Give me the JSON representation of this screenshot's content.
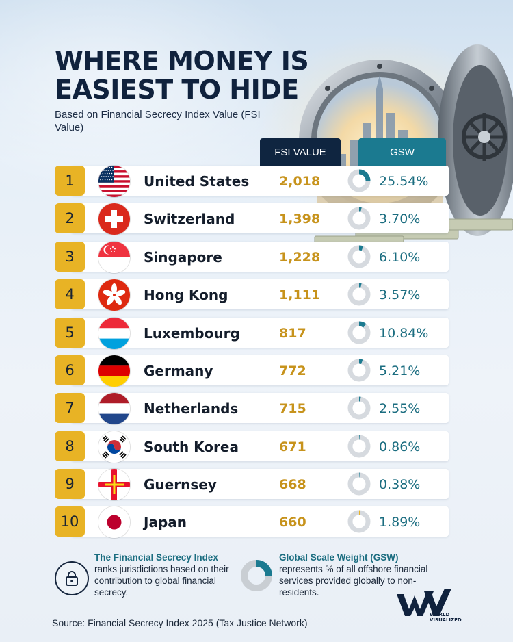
{
  "title_line1": "WHERE MONEY IS",
  "title_line2": "EASIEST TO HIDE",
  "subtitle": "Based on Financial Secrecy Index Value (FSI Value)",
  "colors": {
    "navy": "#0f2540",
    "teal": "#1b7a90",
    "gold": "#e8b325",
    "fsi_text": "#c7931c"
  },
  "chart_data": {
    "type": "table",
    "columns": [
      "FSI VALUE",
      "GSW"
    ],
    "rows": [
      {
        "rank": "1",
        "country": "United States",
        "fsi": "2,018",
        "gsw": "25.54%",
        "gsw_value": 25.54,
        "flag": "us"
      },
      {
        "rank": "2",
        "country": "Switzerland",
        "fsi": "1,398",
        "gsw": "3.70%",
        "gsw_value": 3.7,
        "flag": "ch"
      },
      {
        "rank": "3",
        "country": "Singapore",
        "fsi": "1,228",
        "gsw": "6.10%",
        "gsw_value": 6.1,
        "flag": "sg"
      },
      {
        "rank": "4",
        "country": "Hong Kong",
        "fsi": "1,111",
        "gsw": "3.57%",
        "gsw_value": 3.57,
        "flag": "hk"
      },
      {
        "rank": "5",
        "country": "Luxembourg",
        "fsi": "817",
        "gsw": "10.84%",
        "gsw_value": 10.84,
        "flag": "lu"
      },
      {
        "rank": "6",
        "country": "Germany",
        "fsi": "772",
        "gsw": "5.21%",
        "gsw_value": 5.21,
        "flag": "de"
      },
      {
        "rank": "7",
        "country": "Netherlands",
        "fsi": "715",
        "gsw": "2.55%",
        "gsw_value": 2.55,
        "flag": "nl"
      },
      {
        "rank": "8",
        "country": "South Korea",
        "fsi": "671",
        "gsw": "0.86%",
        "gsw_value": 0.86,
        "flag": "kr"
      },
      {
        "rank": "9",
        "country": "Guernsey",
        "fsi": "668",
        "gsw": "0.38%",
        "gsw_value": 0.38,
        "flag": "gg"
      },
      {
        "rank": "10",
        "country": "Japan",
        "fsi": "660",
        "gsw": "1.89%",
        "gsw_value": 1.89,
        "flag": "jp"
      }
    ]
  },
  "footer": {
    "fsi_title": "The Financial Secrecy Index",
    "fsi_text": "ranks jurisdictions based on their contribution to global financial secrecy.",
    "fsi_icon": "lock-icon",
    "gsw_title": "Global Scale Weight (GSW)",
    "gsw_text": "represents % of all offshore financial services provided globally to non-residents.",
    "gsw_icon": "donut-legend-icon",
    "source": "Source: Financial Secrecy Index 2025 (Tax Justice Network)",
    "brand_line1": "WORLD",
    "brand_line2": "VISUALIZED"
  }
}
